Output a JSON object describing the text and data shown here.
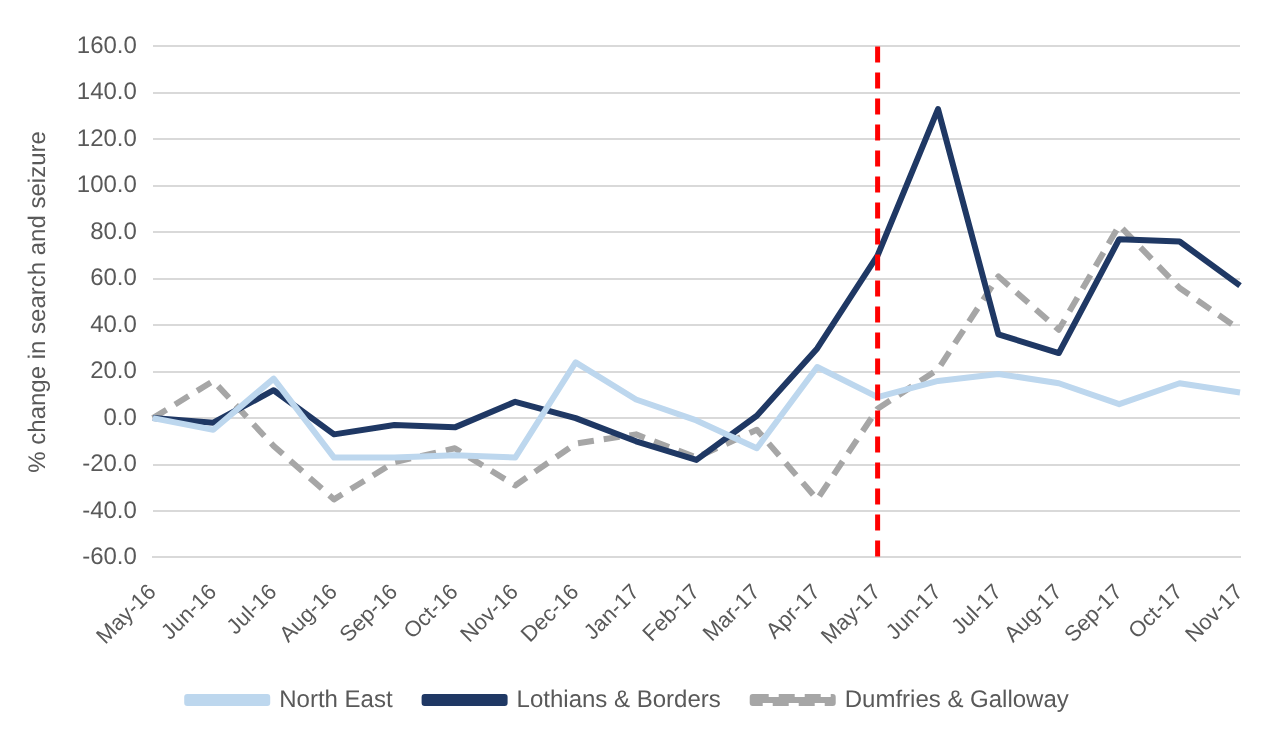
{
  "chart_data": {
    "type": "line",
    "ylabel": "% change in search and seizure",
    "categories": [
      "May-16",
      "Jun-16",
      "Jul-16",
      "Aug-16",
      "Sep-16",
      "Oct-16",
      "Nov-16",
      "Dec-16",
      "Jan-17",
      "Feb-17",
      "Mar-17",
      "Apr-17",
      "May-17",
      "Jun-17",
      "Jul-17",
      "Aug-17",
      "Sep-17",
      "Oct-17",
      "Nov-17"
    ],
    "series": [
      {
        "name": "North East",
        "color": "#bdd7ee",
        "line_style": "solid",
        "values": [
          0,
          -5,
          17,
          -17,
          -17,
          -16,
          -17,
          24,
          8,
          -1,
          -13,
          22,
          9,
          16,
          19,
          15,
          6,
          15,
          11
        ]
      },
      {
        "name": "Lothians & Borders",
        "color": "#1f3864",
        "line_style": "solid",
        "values": [
          0,
          -2,
          12,
          -7,
          -3,
          -4,
          7,
          0,
          -10,
          -18,
          1,
          30,
          70,
          133,
          36,
          28,
          77,
          76,
          57
        ]
      },
      {
        "name": "Dumfries & Galloway",
        "color": "#a6a6a6",
        "line_style": "dashed",
        "values": [
          0,
          16,
          -12,
          -35,
          -19,
          -13,
          -29,
          -11,
          -7,
          -17,
          -5,
          -35,
          4,
          21,
          61,
          38,
          83,
          56,
          38
        ]
      }
    ],
    "ylim": [
      -60,
      160
    ],
    "yticks": [
      {
        "value": -60,
        "label": "-60.0"
      },
      {
        "value": -40,
        "label": "-40.0"
      },
      {
        "value": -20,
        "label": "-20.0"
      },
      {
        "value": 0,
        "label": "0.0"
      },
      {
        "value": 20,
        "label": "20.0"
      },
      {
        "value": 40,
        "label": "40.0"
      },
      {
        "value": 60,
        "label": "60.0"
      },
      {
        "value": 80,
        "label": "80.0"
      },
      {
        "value": 100,
        "label": "100.0"
      },
      {
        "value": 120,
        "label": "120.0"
      },
      {
        "value": 140,
        "label": "140.0"
      },
      {
        "value": 160,
        "label": "160.0"
      }
    ],
    "ref_lines": [
      {
        "axis": "x",
        "value": "May-17",
        "color": "#ff0000",
        "line_style": "dashed"
      }
    ],
    "grid": "y",
    "legend": "bottom",
    "marker": "none"
  }
}
